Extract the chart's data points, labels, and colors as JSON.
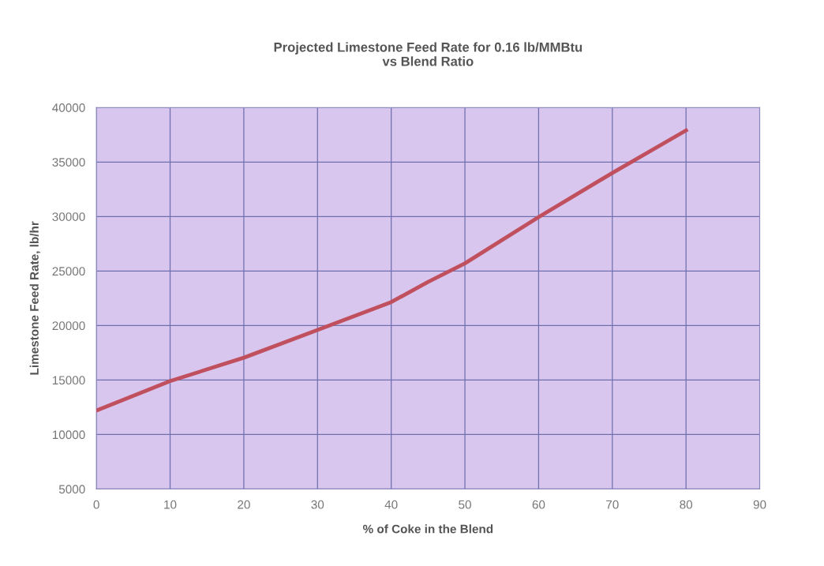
{
  "chart_data": {
    "type": "line",
    "title": "Projected Limestone Feed Rate for 0.16 lb/MMBtu\nvs Blend Ratio",
    "xlabel": "% of Coke in the Blend",
    "ylabel": "Limestone Feed Rate, lb/hr",
    "x": [
      0,
      10,
      20,
      30,
      40,
      45,
      50,
      60,
      70,
      80
    ],
    "series": [
      {
        "color": "#c0505e",
        "values": [
          12200,
          14900,
          17050,
          19600,
          22150,
          24000,
          25700,
          29950,
          34000,
          37900
        ]
      }
    ],
    "xlim": [
      0,
      90
    ],
    "xticks": [
      0,
      10,
      20,
      30,
      40,
      50,
      60,
      70,
      80,
      90
    ],
    "ylim": [
      5000,
      40000
    ],
    "yticks": [
      5000,
      10000,
      15000,
      20000,
      25000,
      30000,
      35000,
      40000
    ],
    "grid": true,
    "legend": false,
    "marker": "none",
    "line_style": "solid"
  }
}
